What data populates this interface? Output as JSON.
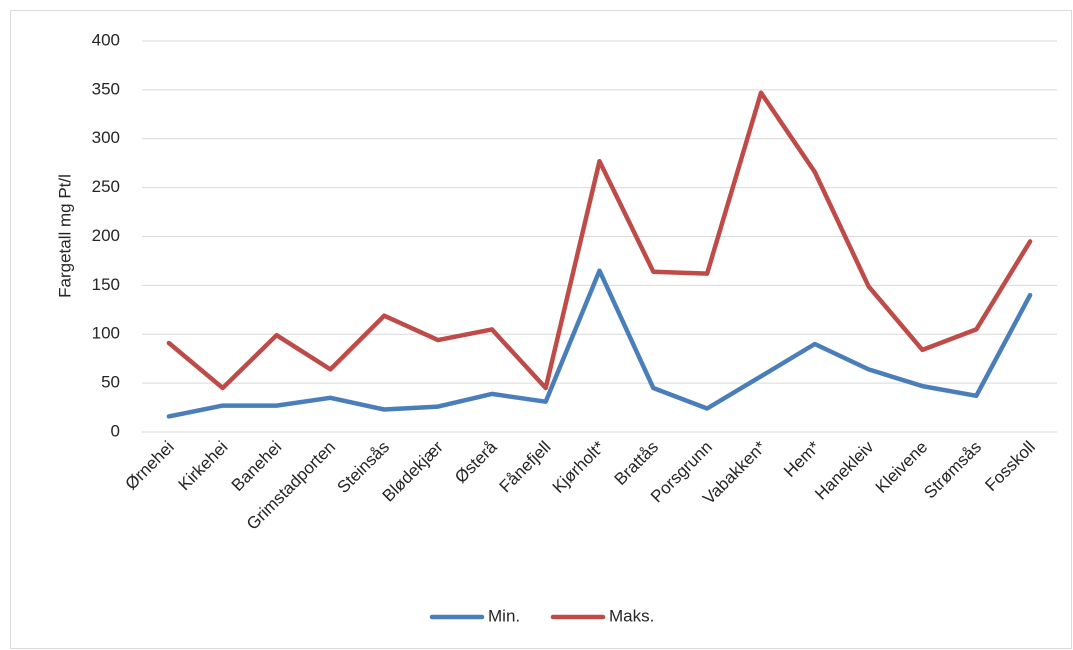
{
  "chart_data": {
    "type": "line",
    "title": "",
    "xlabel": "",
    "ylabel": "Fargetall mg Pt/l",
    "ylim": [
      0,
      400
    ],
    "yticks": [
      0,
      50,
      100,
      150,
      200,
      250,
      300,
      350,
      400
    ],
    "grid": true,
    "legend_position": "bottom",
    "categories": [
      "Ørnehei",
      "Kirkehei",
      "Banehei",
      "Grimstadporten",
      "Steinsås",
      "Blødekjær",
      "Østerå",
      "Fånefjell",
      "Kjørholt*",
      "Brattås",
      "Porsgrunn",
      "Vabakken*",
      "Hem*",
      "Hanekleiv",
      "Kleivene",
      "Strømsås",
      "Fosskoll"
    ],
    "series": [
      {
        "name": "Min.",
        "color": "#4a7ebb",
        "values": [
          16,
          27,
          27,
          35,
          23,
          26,
          39,
          31,
          165,
          45,
          24,
          57,
          90,
          64,
          47,
          37,
          140
        ]
      },
      {
        "name": "Maks.",
        "color": "#be4b48",
        "values": [
          91,
          45,
          99,
          64,
          119,
          94,
          105,
          45,
          277,
          164,
          162,
          347,
          266,
          149,
          84,
          105,
          195
        ]
      }
    ]
  }
}
